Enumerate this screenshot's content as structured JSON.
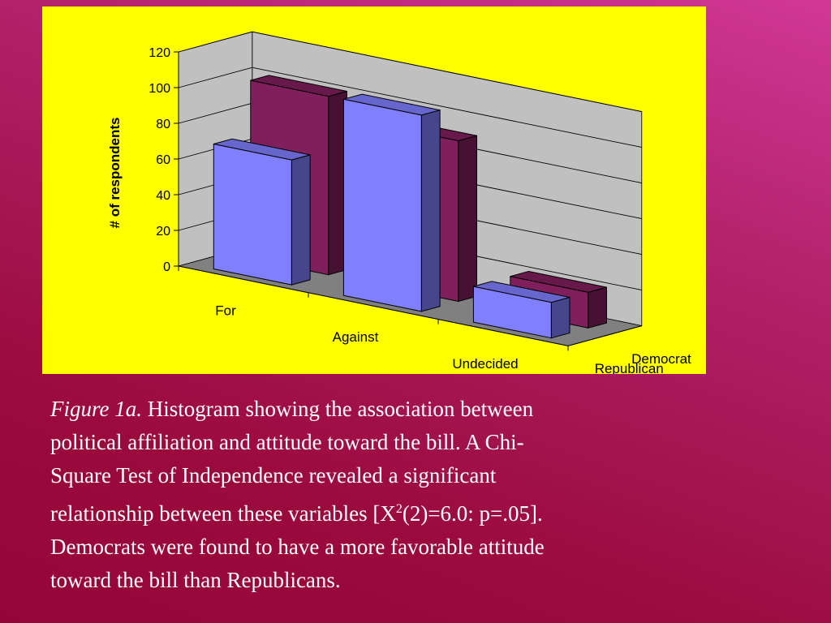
{
  "caption": {
    "figure_label": "Figure 1a.",
    "line1": "Histogram showing the association between",
    "line2": "political affiliation and attitude toward the bill.  A Chi-",
    "line3": "Square Test of Independence revealed a significant",
    "line4_a": "relationship between these variables [X",
    "line4_sup": "2",
    "line4_b": "(2)=6.0: p=.05].",
    "line5": "Democrats were found to have a more favorable attitude",
    "line6": "toward the bill than Republicans."
  },
  "chart_data": {
    "type": "bar",
    "style": "3d-clustered",
    "categories": [
      "For",
      "Against",
      "Undecided"
    ],
    "series": [
      {
        "name": "Democrat",
        "values": [
          100,
          90,
          20
        ],
        "color": "#7f1f5c"
      },
      {
        "name": "Republican",
        "values": [
          70,
          110,
          20
        ],
        "color": "#8080ff"
      }
    ],
    "ylabel": "# of respondents",
    "ylim": [
      0,
      120
    ],
    "yticks": [
      0,
      20,
      40,
      60,
      80,
      100,
      120
    ],
    "grid": true,
    "background": "#ffff00",
    "wall_color": "#c0c0c0",
    "floor_color": "#808080"
  }
}
